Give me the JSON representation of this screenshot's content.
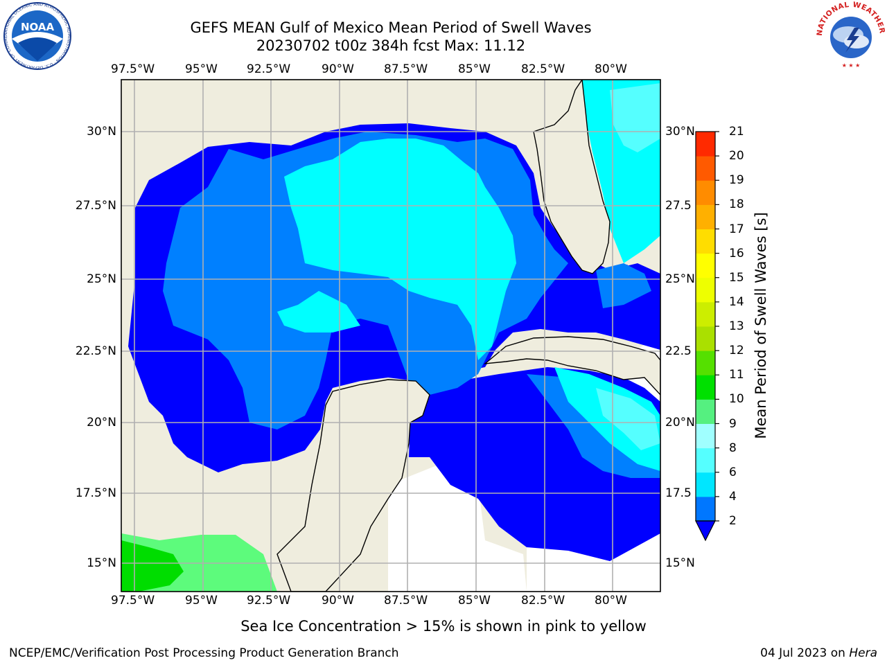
{
  "title": {
    "line1": "GEFS MEAN Gulf of Mexico Mean Period of Swell Waves",
    "line2": "20230702 t00z 384h fcst   Max: 11.12"
  },
  "map": {
    "lon_labels": [
      "97.5°W",
      "95°W",
      "92.5°W",
      "90°W",
      "87.5°W",
      "85°W",
      "82.5°W",
      "80°W"
    ],
    "lat_labels_left": [
      "30°N",
      "27.5°N",
      "25°N",
      "22.5°N",
      "20°N",
      "17.5°N",
      "15°N"
    ],
    "lat_labels_right": [
      "30°N",
      "27.5",
      "25°N",
      "22.5",
      "20°N",
      "17.5",
      "15°N"
    ],
    "extent": {
      "lon_min": -98,
      "lon_max": -78.2,
      "lat_min": 14,
      "lat_max": 31.8
    },
    "colors": {
      "land": "#efedde",
      "ocean_lowest": "#0000ff",
      "ocean_2_4": "#0080ff",
      "ocean_4_6": "#00ffff",
      "ocean_6_8": "#55ffff",
      "ocean_8_10": "#5dfb7c",
      "ocean_10_11": "#00dd00"
    }
  },
  "colorbar": {
    "title": "Mean Period of Swell Waves [s]",
    "levels": [
      "2",
      "4",
      "6",
      "8",
      "9",
      "10",
      "11",
      "12",
      "13",
      "14",
      "15",
      "16",
      "17",
      "18",
      "19",
      "20",
      "21"
    ],
    "colors": [
      "#0077ff",
      "#00e6ff",
      "#55ffff",
      "#a0ffff",
      "#55f080",
      "#00e000",
      "#55e000",
      "#aae000",
      "#ccee00",
      "#eeff00",
      "#ffff00",
      "#ffdd00",
      "#ffb000",
      "#ff8c00",
      "#ff5a00",
      "#ff2a00"
    ]
  },
  "ice_note": "Sea Ice Concentration > 15% is shown in pink to yellow",
  "footer": {
    "left": "NCEP/EMC/Verification Post Processing Product Generation Branch",
    "date": "04 Jul 2023 on ",
    "machine": "Hera"
  },
  "logos": {
    "noaa_text": "NOAA",
    "noaa_ring": "NATIONAL OCEANIC AND ATMOSPHERIC ADMINISTRATION · U.S. DEPARTMENT OF COMMERCE",
    "nws_ring": "NATIONAL WEATHER SERVICE"
  }
}
